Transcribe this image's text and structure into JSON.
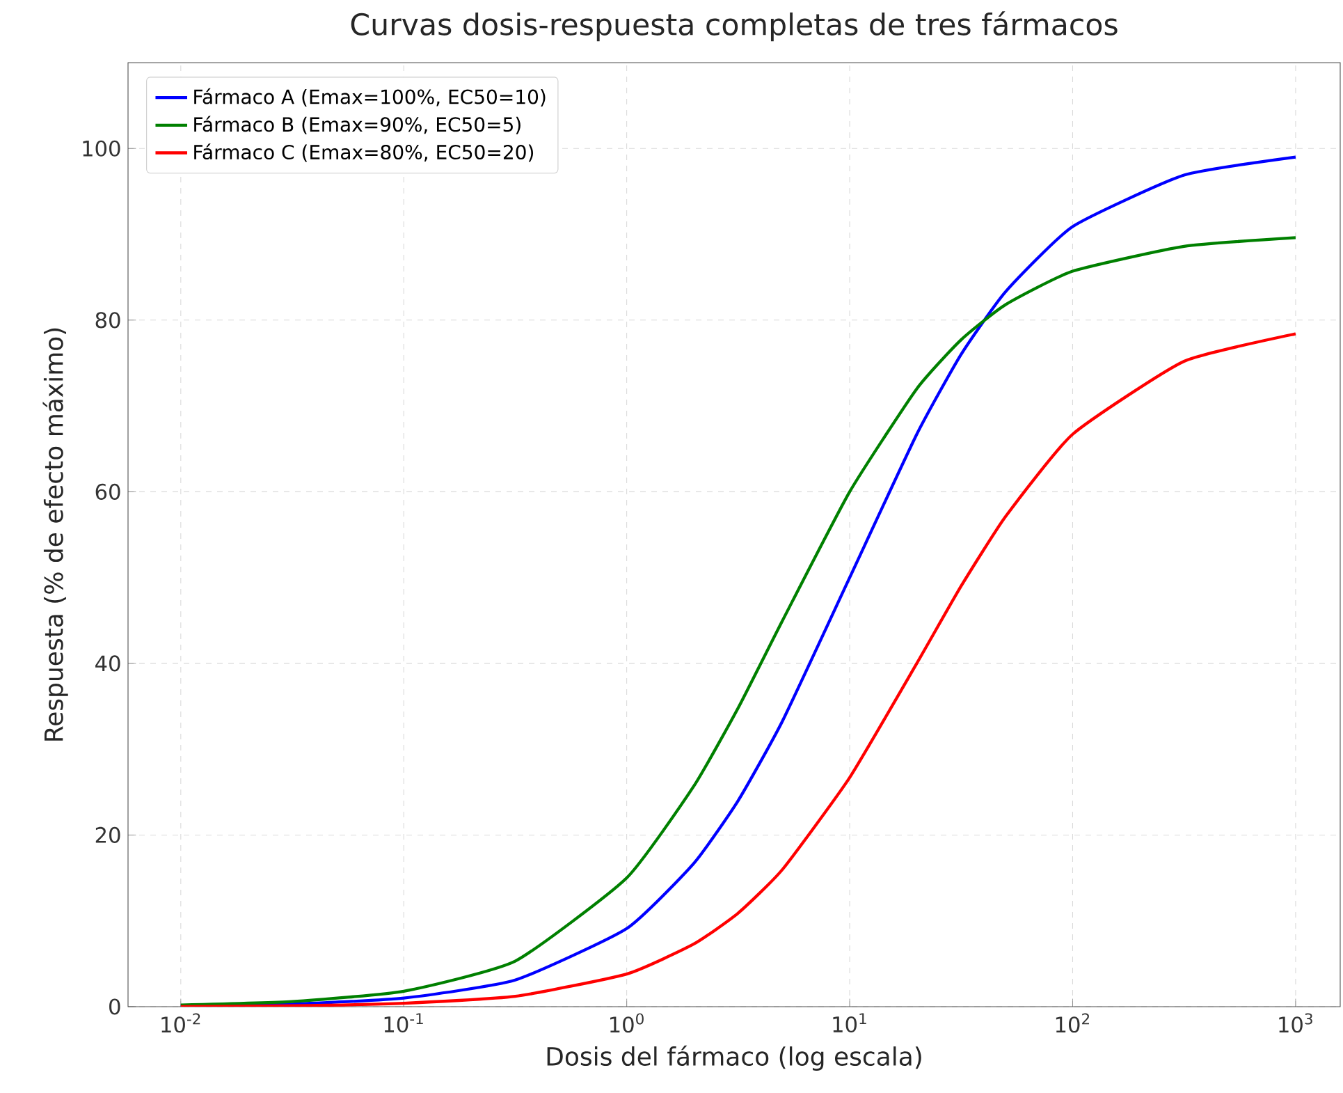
{
  "chart_data": {
    "type": "line",
    "title": "Curvas dosis-respuesta completas de tres fármacos",
    "xlabel": "Dosis del fármaco (log escala)",
    "ylabel": "Respuesta (% de efecto máximo)",
    "x": [
      0.01,
      0.0316,
      0.1,
      0.316,
      1,
      2,
      3.16,
      5,
      10,
      20,
      31.6,
      50,
      100,
      316,
      1000
    ],
    "series": [
      {
        "name": "Fármaco A (Emax=100%, EC50=10)",
        "color": "#0000ff",
        "values": [
          0.1,
          0.3,
          1.0,
          3.1,
          9.1,
          16.7,
          24.0,
          33.3,
          50.0,
          66.7,
          76.0,
          83.3,
          90.9,
          96.9,
          99.0
        ]
      },
      {
        "name": "Fármaco B (Emax=90%, EC50=5)",
        "color": "#008000",
        "values": [
          0.2,
          0.6,
          1.8,
          5.3,
          15.0,
          25.7,
          34.8,
          45.0,
          60.0,
          72.0,
          77.7,
          81.8,
          85.7,
          88.6,
          89.6
        ]
      },
      {
        "name": "Fármaco C (Emax=80%, EC50=20)",
        "color": "#ff0000",
        "values": [
          0.0,
          0.1,
          0.4,
          1.2,
          3.8,
          7.3,
          10.9,
          16.0,
          26.7,
          40.0,
          49.0,
          57.1,
          66.7,
          75.2,
          78.4
        ]
      }
    ],
    "log": "x",
    "xlim": [
      0.0058,
      1585
    ],
    "ylim": [
      0,
      110
    ],
    "xticks": [
      {
        "value": 0.01,
        "label": "10$^{-2}$"
      },
      {
        "value": 0.1,
        "label": "10$^{-1}$"
      },
      {
        "value": 1,
        "label": "10$^{0}$"
      },
      {
        "value": 10,
        "label": "10$^{1}$"
      },
      {
        "value": 100,
        "label": "10$^{2}$"
      },
      {
        "value": 1000,
        "label": "10$^{3}$"
      }
    ],
    "yticks": [
      0,
      20,
      40,
      60,
      80,
      100
    ],
    "grid": true,
    "legend": "top left",
    "marker": "none",
    "line_style": "solid"
  }
}
